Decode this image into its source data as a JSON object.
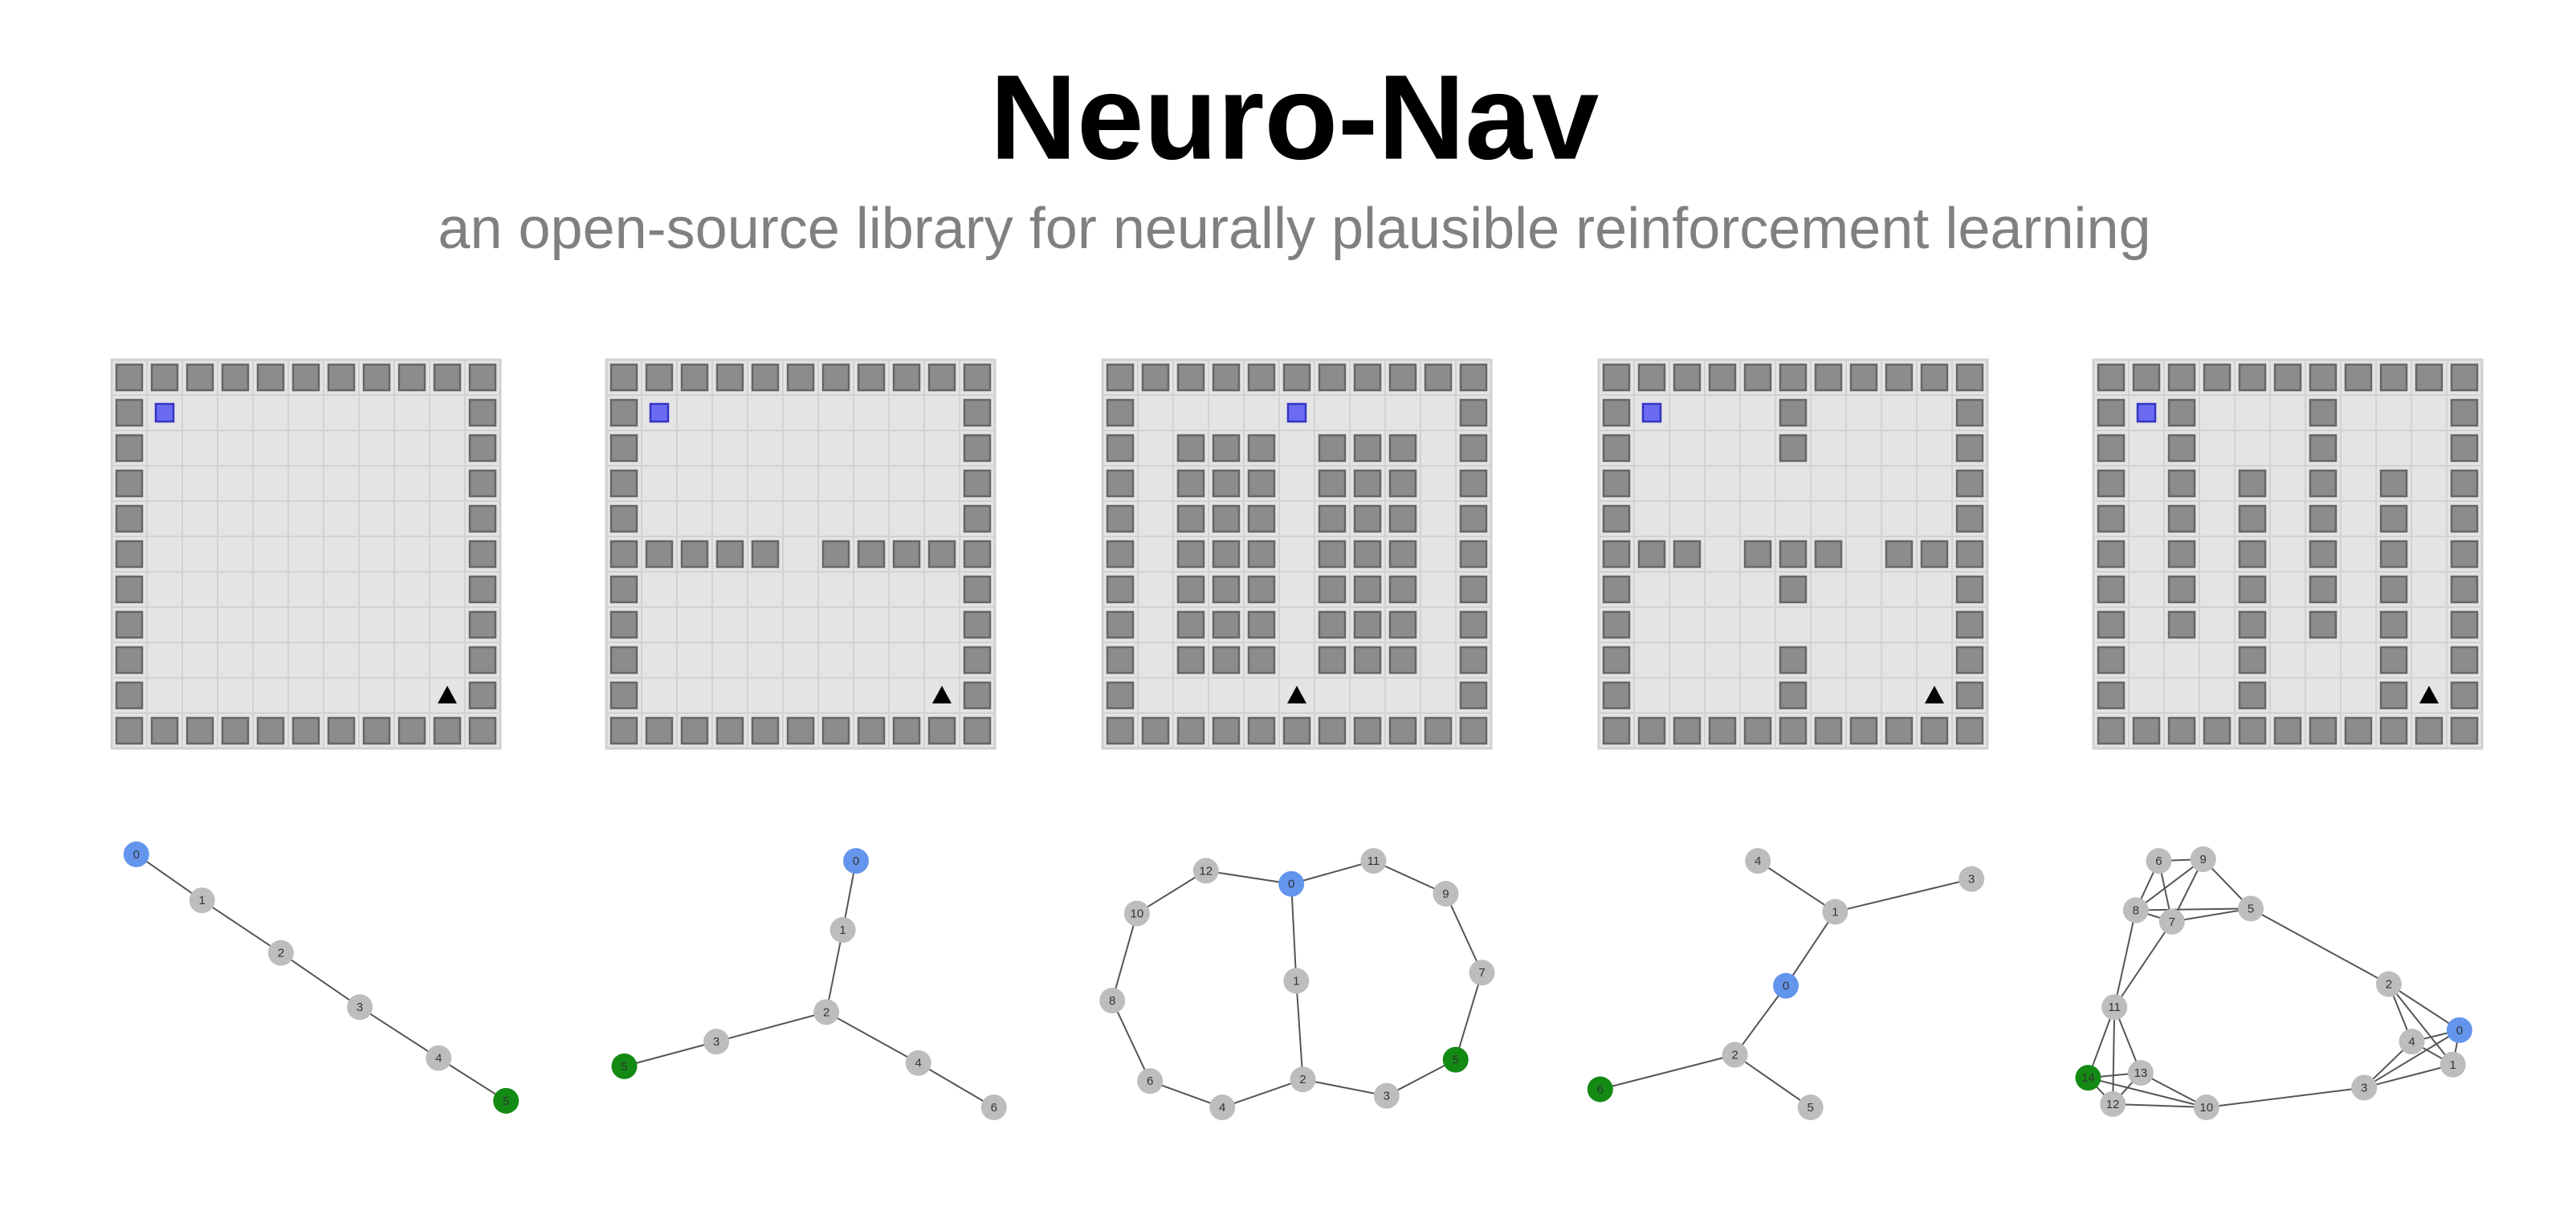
{
  "header": {
    "title": "Neuro-Nav",
    "subtitle": "an open-source library for neurally plausible reinforcement learning"
  },
  "graphs": [
    {
      "nodes": [
        {
          "label": "0"
        },
        {
          "label": "1"
        },
        {
          "label": "2"
        },
        {
          "label": "3"
        },
        {
          "label": "4"
        },
        {
          "label": "5"
        }
      ]
    },
    {
      "nodes": [
        {
          "label": "0"
        },
        {
          "label": "1"
        },
        {
          "label": "2"
        },
        {
          "label": "3"
        },
        {
          "label": "4"
        },
        {
          "label": "5"
        },
        {
          "label": "6"
        }
      ]
    },
    {
      "nodes": [
        {
          "label": "0"
        },
        {
          "label": "1"
        },
        {
          "label": "2"
        },
        {
          "label": "3"
        },
        {
          "label": "4"
        },
        {
          "label": "5"
        },
        {
          "label": "6"
        },
        {
          "label": "7"
        },
        {
          "label": "8"
        },
        {
          "label": "9"
        },
        {
          "label": "10"
        },
        {
          "label": "11"
        },
        {
          "label": "12"
        }
      ]
    },
    {
      "nodes": [
        {
          "label": "0"
        },
        {
          "label": "1"
        },
        {
          "label": "2"
        },
        {
          "label": "3"
        },
        {
          "label": "4"
        },
        {
          "label": "5"
        },
        {
          "label": "6"
        }
      ]
    },
    {
      "nodes": [
        {
          "label": "0"
        },
        {
          "label": "1"
        },
        {
          "label": "2"
        },
        {
          "label": "3"
        },
        {
          "label": "4"
        },
        {
          "label": "5"
        },
        {
          "label": "6"
        },
        {
          "label": "7"
        },
        {
          "label": "8"
        },
        {
          "label": "9"
        },
        {
          "label": "10"
        },
        {
          "label": "11"
        },
        {
          "label": "12"
        },
        {
          "label": "13"
        },
        {
          "label": "14"
        }
      ]
    }
  ]
}
